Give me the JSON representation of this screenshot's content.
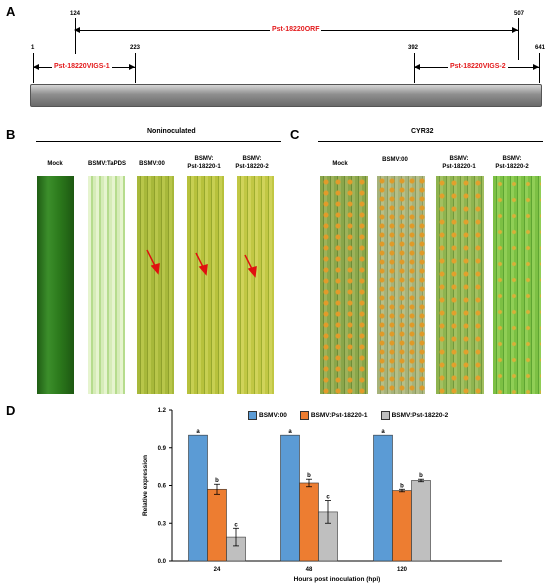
{
  "panelA": {
    "label": "A",
    "orf_label": "Pst-18220ORF",
    "vigs1_label": "Pst-18220VIGS-1",
    "vigs2_label": "Pst-18220VIGS-2",
    "positions": {
      "p1": "1",
      "p124": "124",
      "p223": "223",
      "p392": "392",
      "p507": "507",
      "p641": "641"
    }
  },
  "panelB": {
    "label": "B",
    "title": "Noninoculated",
    "leaves": [
      {
        "label": "Mock",
        "color": "#2e7d1f"
      },
      {
        "label": "BSMV:TaPDS",
        "color": "#c9e6a8"
      },
      {
        "label": "BSMV:00",
        "color": "#a7b83a"
      },
      {
        "label": "BSMV:\nPst-18220-1",
        "color": "#b7c13c"
      },
      {
        "label": "BSMV:\nPst-18220-2",
        "color": "#b9c23e"
      }
    ]
  },
  "panelC": {
    "label": "C",
    "title": "CYR32",
    "leaves": [
      {
        "label": "Mock",
        "color": "#7fa23e"
      },
      {
        "label": "BSMV:00",
        "color": "#98a860"
      },
      {
        "label": "BSMV:\nPst-18220-1",
        "color": "#88ae48"
      },
      {
        "label": "BSMV:\nPst-18220-2",
        "color": "#6fb23a"
      }
    ]
  },
  "panelD": {
    "label": "D",
    "legend": [
      "BSMV:00",
      "BSMV:Pst-18220-1",
      "BSMV:Pst-18220-2"
    ]
  },
  "chart_data": {
    "type": "bar",
    "xlabel": "Hours post inoculation (hpi)",
    "ylabel": "Relative expression",
    "ylim": [
      0,
      1.2
    ],
    "yticks": [
      "0.0",
      "0.3",
      "0.6",
      "0.9",
      "1.2"
    ],
    "categories": [
      "24",
      "48",
      "120"
    ],
    "series": [
      {
        "name": "BSMV:00",
        "color": "#5b9bd5",
        "values": [
          1.0,
          1.0,
          1.0
        ],
        "errors": [
          0,
          0,
          0
        ],
        "letters": [
          "a",
          "a",
          "a"
        ]
      },
      {
        "name": "BSMV:Pst-18220-1",
        "color": "#ed7d31",
        "values": [
          0.57,
          0.62,
          0.56
        ],
        "errors": [
          0.04,
          0.03,
          0.01
        ],
        "letters": [
          "b",
          "b",
          "b"
        ]
      },
      {
        "name": "BSMV:Pst-18220-2",
        "color": "#bfbfbf",
        "values": [
          0.19,
          0.39,
          0.64
        ],
        "errors": [
          0.07,
          0.09,
          0.01
        ],
        "letters": [
          "c",
          "c",
          "b"
        ]
      }
    ]
  }
}
